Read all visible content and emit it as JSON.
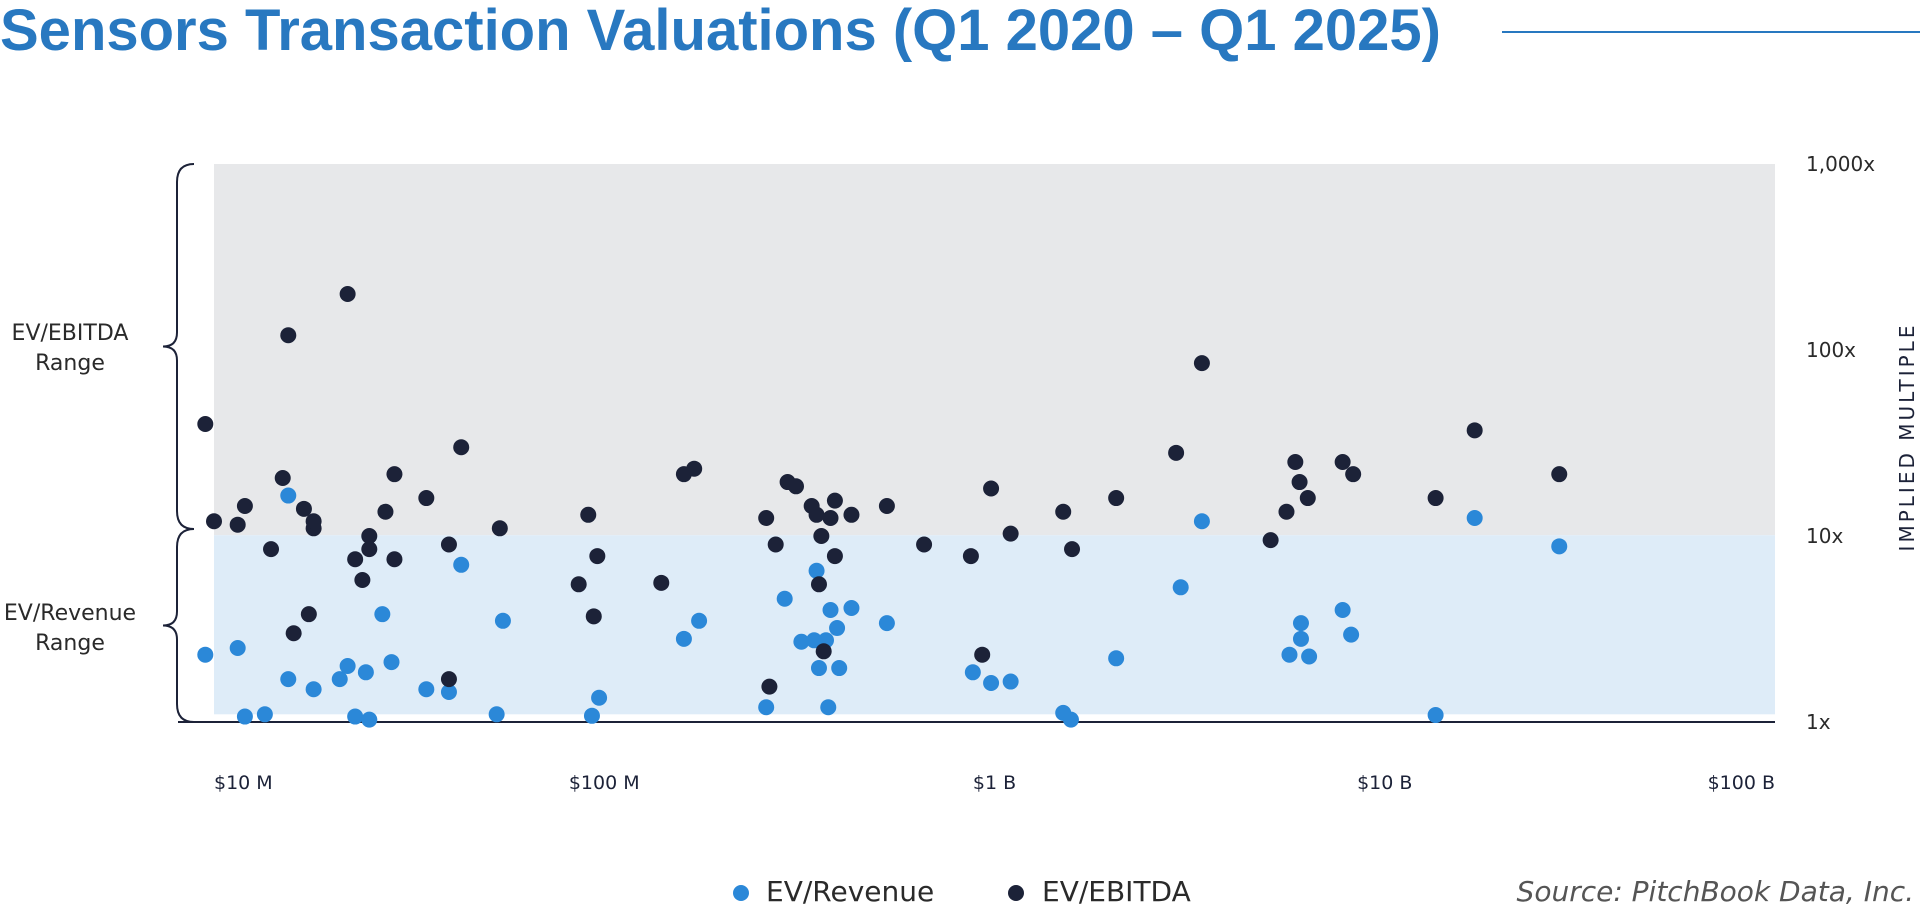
{
  "title": "Sensors Transaction Valuations (Q1 2020 – Q1 2025)",
  "source": "Source: PitchBook Data, Inc.",
  "range_labels": {
    "ebitda": [
      "EV/EBITDA",
      "Range"
    ],
    "revenue": [
      "EV/Revenue",
      "Range"
    ]
  },
  "colors": {
    "title": "#2878c0",
    "ev_revenue": "#2b88d8",
    "ev_ebitda": "#1c2238",
    "ebitda_band": "#e7e8ea",
    "revenue_band": "#deecf8",
    "axis": "#1c2238",
    "text": "#2a2a2a"
  },
  "chart_data": {
    "type": "scatter",
    "x_scale": "log",
    "y_scale": "log",
    "xlim": [
      10,
      100000
    ],
    "ylim": [
      1,
      1000
    ],
    "x_ticks": [
      {
        "value": 10,
        "label": "$10 M"
      },
      {
        "value": 100,
        "label": "$100 M"
      },
      {
        "value": 1000,
        "label": "$1 B"
      },
      {
        "value": 10000,
        "label": "$10 B"
      },
      {
        "value": 100000,
        "label": "$100 B"
      }
    ],
    "y_ticks": [
      {
        "value": 1,
        "label": "1x"
      },
      {
        "value": 10,
        "label": "10x"
      },
      {
        "value": 100,
        "label": "100x"
      },
      {
        "value": 1000,
        "label": "1,000x"
      }
    ],
    "ylabel": "IMPLIED MULTIPLE",
    "bands": {
      "ev_ebitda_range": [
        10.1,
        1000
      ],
      "ev_revenue_range": [
        1.1,
        10.1
      ]
    },
    "legend": [
      "EV/Revenue",
      "EV/EBITDA"
    ],
    "series": [
      {
        "name": "EV/Revenue",
        "points": [
          [
            9.5,
            2.3
          ],
          [
            11.5,
            2.5
          ],
          [
            12.0,
            1.07
          ],
          [
            13.5,
            1.1
          ],
          [
            15.5,
            16.5
          ],
          [
            15.5,
            1.7
          ],
          [
            18.0,
            1.5
          ],
          [
            21.0,
            1.7
          ],
          [
            22.0,
            2.0
          ],
          [
            23.0,
            1.07
          ],
          [
            24.5,
            1.85
          ],
          [
            25.0,
            1.03
          ],
          [
            27.0,
            3.8
          ],
          [
            28.5,
            2.1
          ],
          [
            35.0,
            1.5
          ],
          [
            40.0,
            1.45
          ],
          [
            43.0,
            7.0
          ],
          [
            53.0,
            1.1
          ],
          [
            55.0,
            3.5
          ],
          [
            93.0,
            1.08
          ],
          [
            97.0,
            1.35
          ],
          [
            160.0,
            2.8
          ],
          [
            175.0,
            3.5
          ],
          [
            260.0,
            1.2
          ],
          [
            290.0,
            4.6
          ],
          [
            320.0,
            2.7
          ],
          [
            345.0,
            2.75
          ],
          [
            350.0,
            6.5
          ],
          [
            355.0,
            1.95
          ],
          [
            370.0,
            2.75
          ],
          [
            375.0,
            1.2
          ],
          [
            380.0,
            4.0
          ],
          [
            395.0,
            3.2
          ],
          [
            400.0,
            1.95
          ],
          [
            430.0,
            4.1
          ],
          [
            530.0,
            3.4
          ],
          [
            880.0,
            1.85
          ],
          [
            980.0,
            1.62
          ],
          [
            1100.0,
            1.65
          ],
          [
            1500.0,
            1.12
          ],
          [
            1570.0,
            1.03
          ],
          [
            2050.0,
            2.2
          ],
          [
            3000.0,
            5.3
          ],
          [
            3400.0,
            12.0
          ],
          [
            5700.0,
            2.3
          ],
          [
            6100.0,
            3.4
          ],
          [
            6100.0,
            2.8
          ],
          [
            6400.0,
            2.25
          ],
          [
            7800.0,
            4.0
          ],
          [
            8200.0,
            2.95
          ],
          [
            13500.0,
            1.09
          ],
          [
            17000.0,
            12.5
          ],
          [
            28000.0,
            8.8
          ]
        ]
      },
      {
        "name": "EV/EBITDA",
        "points": [
          [
            9.5,
            40.0
          ],
          [
            10.0,
            12.0
          ],
          [
            11.5,
            11.5
          ],
          [
            12.0,
            14.5
          ],
          [
            14.0,
            8.5
          ],
          [
            15.0,
            20.5
          ],
          [
            15.5,
            120.0
          ],
          [
            16.0,
            3.0
          ],
          [
            17.0,
            14.0
          ],
          [
            17.5,
            3.8
          ],
          [
            18.0,
            11.0
          ],
          [
            18.0,
            12.0
          ],
          [
            22.0,
            200.0
          ],
          [
            23.0,
            7.5
          ],
          [
            24.0,
            5.8
          ],
          [
            25.0,
            8.5
          ],
          [
            25.0,
            10.0
          ],
          [
            27.5,
            13.5
          ],
          [
            29.0,
            21.5
          ],
          [
            29.0,
            7.5
          ],
          [
            35.0,
            16.0
          ],
          [
            40.0,
            9.0
          ],
          [
            40.0,
            1.7
          ],
          [
            43.0,
            30.0
          ],
          [
            54.0,
            11.0
          ],
          [
            86.0,
            5.5
          ],
          [
            91.0,
            13.0
          ],
          [
            94.0,
            3.7
          ],
          [
            96.0,
            7.8
          ],
          [
            140.0,
            5.6
          ],
          [
            160.0,
            21.5
          ],
          [
            170.0,
            23.0
          ],
          [
            260.0,
            12.5
          ],
          [
            265.0,
            1.55
          ],
          [
            275.0,
            9.0
          ],
          [
            295.0,
            19.5
          ],
          [
            310.0,
            18.5
          ],
          [
            340.0,
            14.5
          ],
          [
            350.0,
            13.0
          ],
          [
            355.0,
            5.5
          ],
          [
            360.0,
            10.0
          ],
          [
            365.0,
            2.4
          ],
          [
            380.0,
            12.5
          ],
          [
            390.0,
            15.5
          ],
          [
            390.0,
            7.8
          ],
          [
            430.0,
            13.0
          ],
          [
            530.0,
            14.5
          ],
          [
            660.0,
            9.0
          ],
          [
            870.0,
            7.8
          ],
          [
            930.0,
            2.3
          ],
          [
            980.0,
            18.0
          ],
          [
            1100.0,
            10.3
          ],
          [
            1500.0,
            13.5
          ],
          [
            1580.0,
            8.5
          ],
          [
            2050.0,
            16.0
          ],
          [
            2920.0,
            28.0
          ],
          [
            3400.0,
            85.0
          ],
          [
            5100.0,
            9.5
          ],
          [
            5600.0,
            13.5
          ],
          [
            5900.0,
            25.0
          ],
          [
            6050.0,
            19.5
          ],
          [
            6350.0,
            16.0
          ],
          [
            7800.0,
            25.0
          ],
          [
            8300.0,
            21.5
          ],
          [
            13500.0,
            16.0
          ],
          [
            17000.0,
            37.0
          ],
          [
            28000.0,
            21.5
          ]
        ]
      }
    ]
  }
}
